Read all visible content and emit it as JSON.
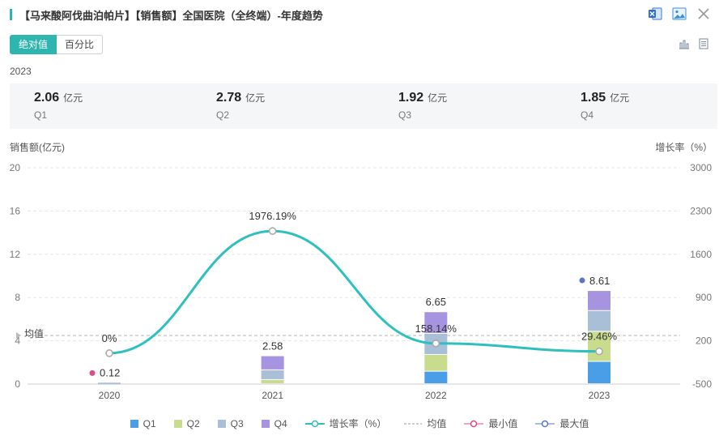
{
  "header": {
    "title": "【马来酸阿伐曲泊帕片】【销售额】全国医院（全终端）-年度趋势",
    "icons": [
      "excel-export-icon",
      "image-export-icon",
      "close-icon"
    ]
  },
  "toggle": {
    "absolute": "绝对值",
    "percent": "百分比"
  },
  "view_icons": [
    "bar-chart-view-icon",
    "table-view-icon"
  ],
  "summary": {
    "year": "2023",
    "items": [
      {
        "value": "2.06",
        "unit": "亿元",
        "label": "Q1"
      },
      {
        "value": "2.78",
        "unit": "亿元",
        "label": "Q2"
      },
      {
        "value": "1.92",
        "unit": "亿元",
        "label": "Q3"
      },
      {
        "value": "1.85",
        "unit": "亿元",
        "label": "Q4"
      }
    ]
  },
  "colors": {
    "q1": "#4a9ee8",
    "q2": "#c9dc8e",
    "q3": "#a9bfd8",
    "q4": "#a794e0",
    "growth": "#2fbfbf",
    "min": "#e0488c",
    "max": "#5a74c8",
    "accent": "#2fb5b0"
  },
  "chart_data": {
    "type": "bar",
    "categories": [
      "2020",
      "2021",
      "2022",
      "2023"
    ],
    "series": [
      {
        "name": "Q1",
        "values": [
          0.03,
          0.0,
          1.15,
          2.06
        ]
      },
      {
        "name": "Q2",
        "values": [
          0.03,
          0.38,
          1.55,
          2.78
        ]
      },
      {
        "name": "Q3",
        "values": [
          0.03,
          0.9,
          1.95,
          1.92
        ]
      },
      {
        "name": "Q4",
        "values": [
          0.03,
          1.3,
          2.0,
          1.85
        ]
      }
    ],
    "totals": [
      0.12,
      2.58,
      6.65,
      8.61
    ],
    "total_labels": [
      "0.12",
      "2.58",
      "6.65",
      "8.61"
    ],
    "growth": {
      "name": "增长率（%）",
      "values": [
        0,
        1976.19,
        158.14,
        29.46
      ],
      "labels": [
        "0%",
        "1976.19%",
        "158.14%",
        "29.46%"
      ]
    },
    "avg": {
      "name": "均值",
      "label": "均值",
      "value": 4.49
    },
    "min_name": "最小值",
    "max_name": "最大值",
    "ylabel_left": "销售额(亿元)",
    "ylabel_right": "增长率（%）",
    "ylim_left": [
      0,
      20
    ],
    "yticks_left": [
      "0",
      "4",
      "8",
      "12",
      "16",
      "20"
    ],
    "ylim_right": [
      -500,
      3000
    ],
    "yticks_right": [
      "-500",
      "200",
      "900",
      "1600",
      "2300",
      "3000"
    ],
    "grid": true,
    "legend_position": "bottom"
  }
}
